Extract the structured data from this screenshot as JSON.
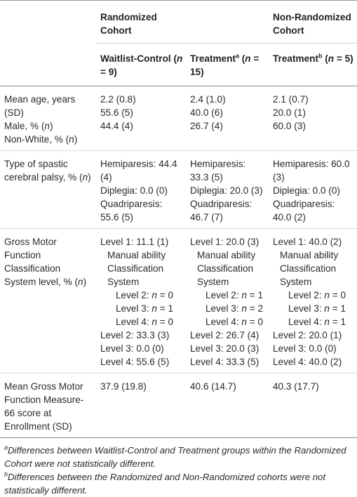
{
  "header": {
    "groups": [
      "Randomized Cohort",
      "Non-Randomized Cohort"
    ],
    "columns": [
      {
        "label": "Waitlist-Control (n = 9)"
      },
      {
        "label": "Treatment",
        "note": "a",
        "detail": "(n = 15)"
      },
      {
        "label": "Treatment",
        "note": "b",
        "detail": "(n = 5)"
      }
    ]
  },
  "rows": [
    {
      "label": [
        "Mean age, years (SD)",
        "Male, % (n)",
        "Non-White, % (n)"
      ],
      "cells": [
        [
          "2.2 (0.8)",
          "55.6 (5)",
          "44.4 (4)"
        ],
        [
          "2.4 (1.0)",
          "40.0 (6)",
          "26.7 (4)"
        ],
        [
          "2.1 (0.7)",
          "20.0 (1)",
          "60.0 (3)"
        ]
      ]
    },
    {
      "label": [
        "Type of spastic cerebral palsy, % (n)"
      ],
      "cells": [
        [
          "Hemiparesis: 44.4 (4)",
          "Diplegia: 0.0 (0)",
          "Quadriparesis: 55.6 (5)"
        ],
        [
          "Hemiparesis: 33.3 (5)",
          "Diplegia: 20.0 (3)",
          "Quadriparesis: 46.7 (7)"
        ],
        [
          "Hemiparesis: 60.0 (3)",
          "Diplegia: 0.0 (0)",
          "Quadriparesis: 40.0 (2)"
        ]
      ]
    },
    {
      "label": [
        "Gross Motor Function Classification System level, % (n)"
      ],
      "cells": [
        [
          "Level 1: 11.1 (1)",
          "Manual ability Classification System",
          "Level 2: n = 0",
          "Level 3: n = 1",
          "Level 4: n = 0",
          "Level 2: 33.3 (3)",
          "Level 3: 0.0 (0)",
          "Level 4: 55.6 (5)"
        ],
        [
          "Level 1: 20.0 (3)",
          "Manual ability Classification System",
          "Level 2: n = 1",
          "Level 3: n = 2",
          "Level 4: n = 0",
          "Level 2: 26.7 (4)",
          "Level 3: 20.0 (3)",
          "Level 4: 33.3 (5)"
        ],
        [
          "Level 1: 40.0 (2)",
          "Manual ability Classification System",
          "Level 2: n = 0",
          "Level 3: n = 1",
          "Level 4: n = 1",
          "Level 2: 20.0 (1)",
          "Level 3: 0.0 (0)",
          "Level 4: 40.0 (2)"
        ]
      ]
    },
    {
      "label": [
        "Mean Gross Motor Function Measure-66 score at Enrollment (SD)"
      ],
      "cells": [
        [
          "37.9 (19.8)"
        ],
        [
          "40.6 (14.7)"
        ],
        [
          "40.3 (17.7)"
        ]
      ]
    }
  ],
  "footnotes": [
    {
      "mark": "a",
      "text": "Differences between Waitlist-Control and Treatment groups within the Randomized Cohort were not statistically different."
    },
    {
      "mark": "b",
      "text": "Differences between the Randomized and Non-Randomized cohorts were not statistically different."
    }
  ]
}
